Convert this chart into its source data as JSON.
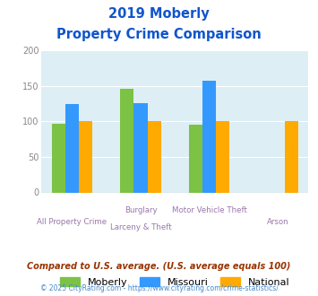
{
  "title_line1": "2019 Moberly",
  "title_line2": "Property Crime Comparison",
  "series": {
    "Moberly": [
      97,
      146,
      95,
      null
    ],
    "Missouri": [
      125,
      126,
      157,
      null
    ],
    "National": [
      100,
      100,
      100,
      100
    ]
  },
  "colors": {
    "Moberly": "#7cc244",
    "Missouri": "#3399ff",
    "National": "#ffaa00"
  },
  "ylim": [
    0,
    200
  ],
  "yticks": [
    0,
    50,
    100,
    150,
    200
  ],
  "bg_color": "#ddeef5",
  "footnote1": "Compared to U.S. average. (U.S. average equals 100)",
  "footnote2": "© 2025 CityRating.com - https://www.cityrating.com/crime-statistics/",
  "title_color": "#1155cc",
  "footnote1_color": "#993300",
  "footnote2_color": "#4488cc",
  "label_color": "#9977aa",
  "ylabel_color": "#888888",
  "bar_width": 0.2,
  "group_positions": [
    0,
    1,
    2,
    3
  ]
}
